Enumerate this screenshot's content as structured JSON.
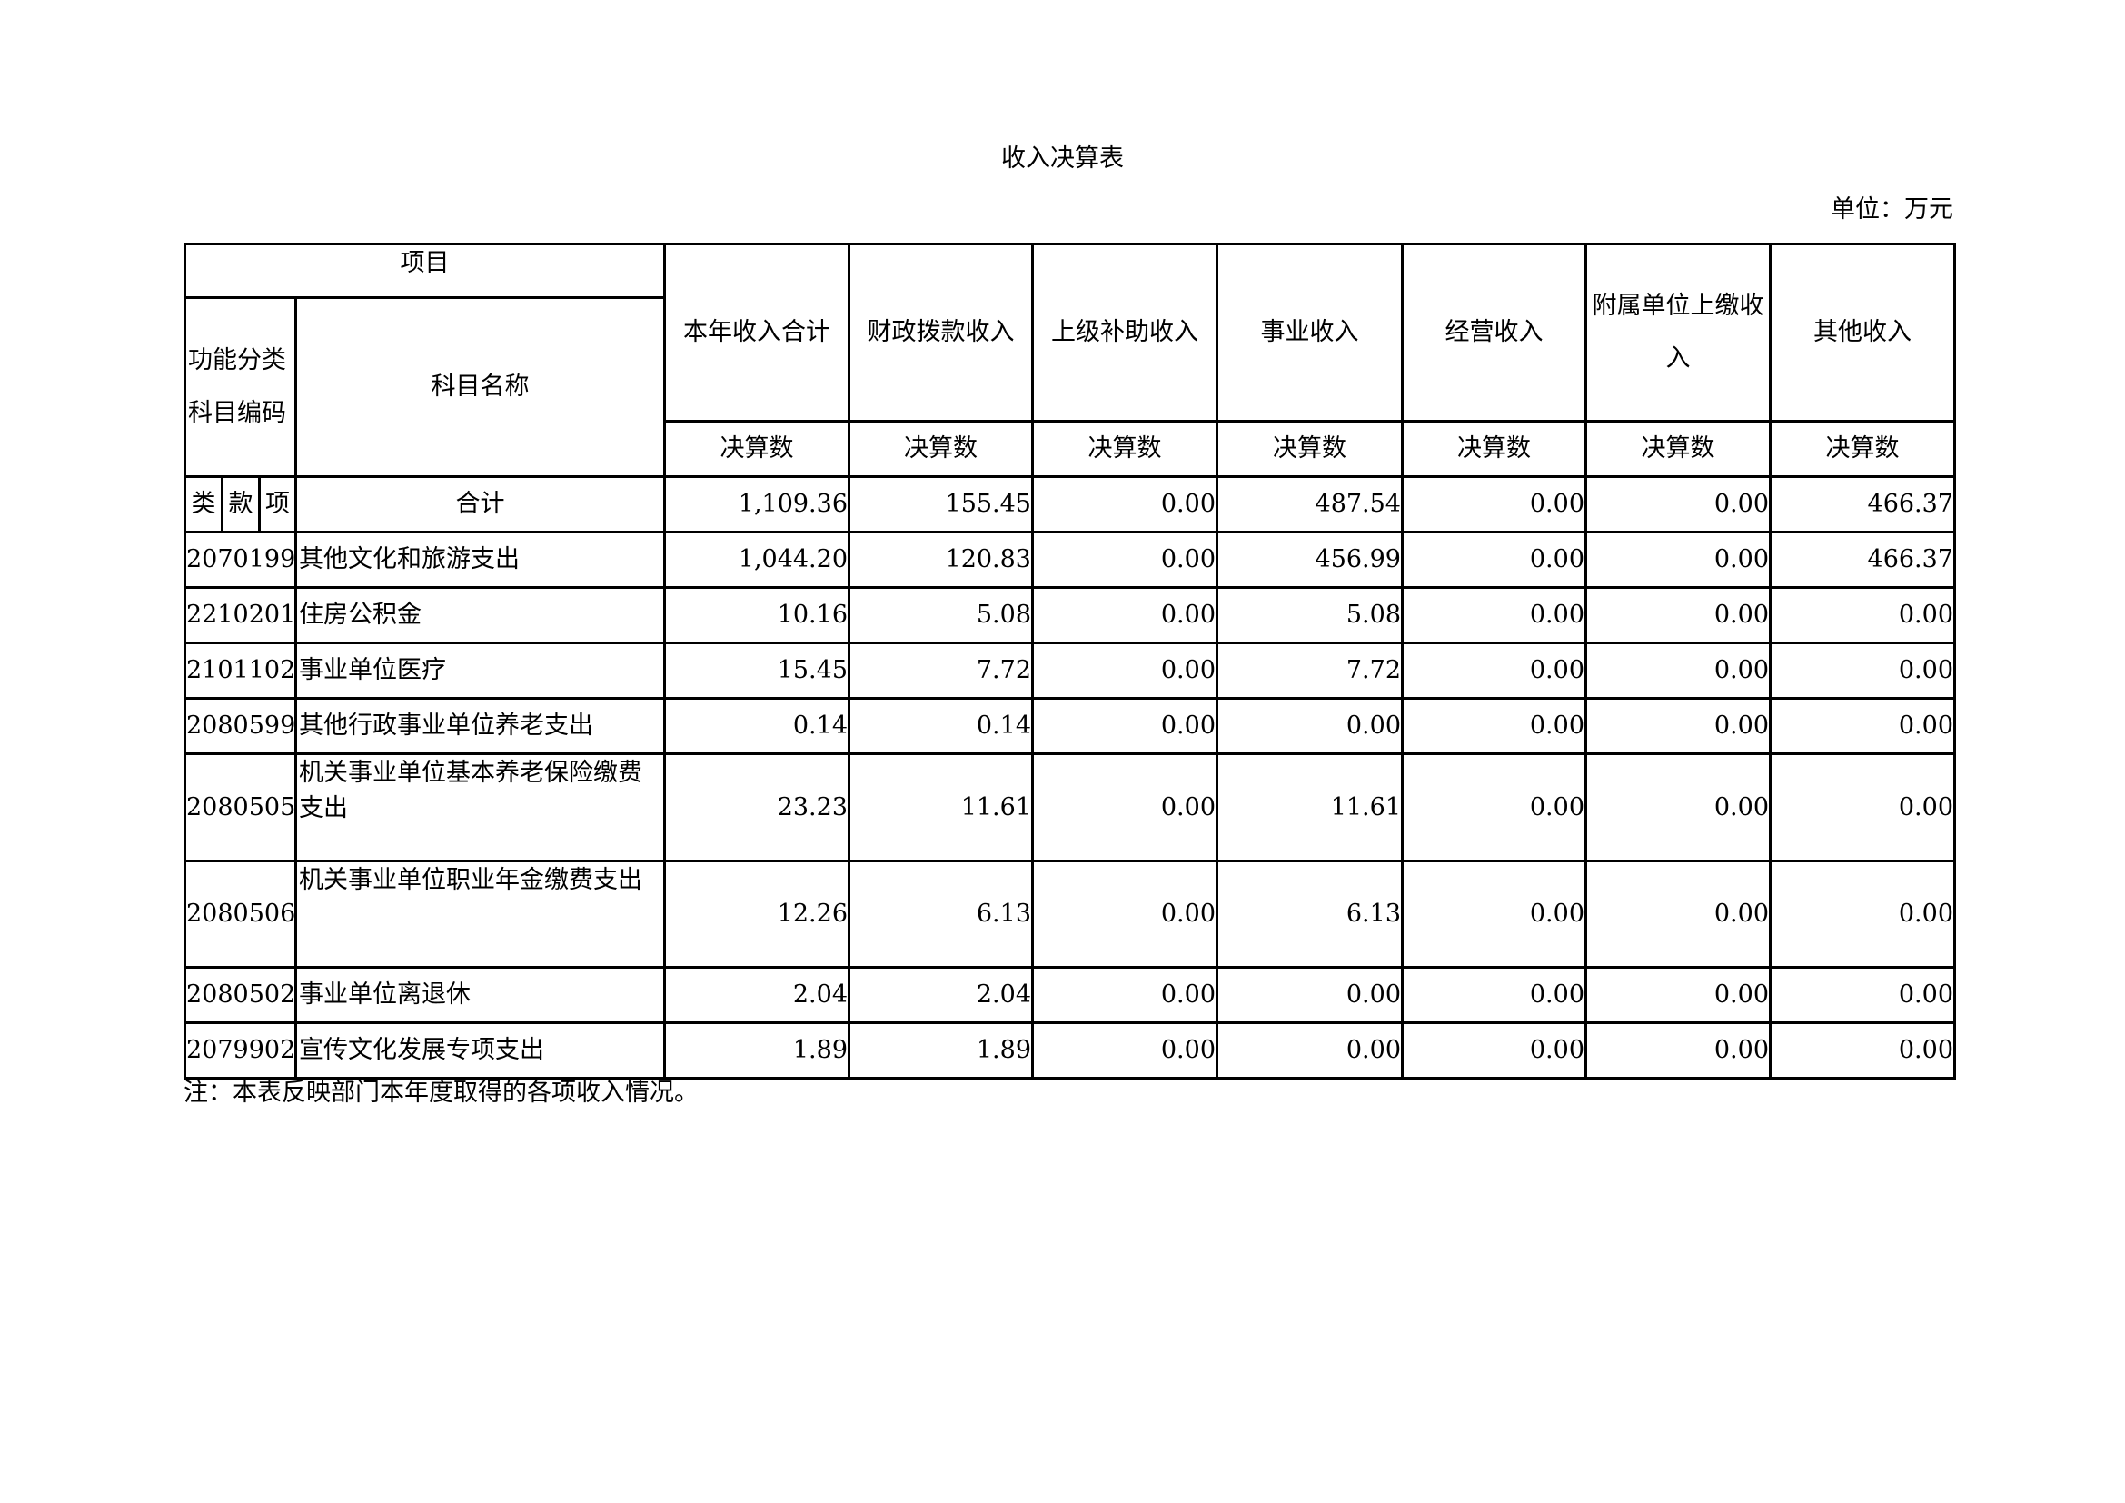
{
  "title": "收入决算表",
  "unit": "单位：万元",
  "header": {
    "item": "项目",
    "code": "功能分类科目编码",
    "name": "科目名称",
    "columns": [
      "本年收入合计",
      "财政拨款收入",
      "上级补助收入",
      "事业收入",
      "经营收入",
      "附属单位上缴收入",
      "其他收入"
    ],
    "sub": "决算数",
    "lei": "类",
    "kuan": "款",
    "xiang": "项",
    "total_label": "合计"
  },
  "total": [
    "1,109.36",
    "155.45",
    "0.00",
    "487.54",
    "0.00",
    "0.00",
    "466.37"
  ],
  "rows": [
    {
      "code": "2070199",
      "name": "其他文化和旅游支出",
      "values": [
        "1,044.20",
        "120.83",
        "0.00",
        "456.99",
        "0.00",
        "0.00",
        "466.37"
      ]
    },
    {
      "code": "2210201",
      "name": "住房公积金",
      "values": [
        "10.16",
        "5.08",
        "0.00",
        "5.08",
        "0.00",
        "0.00",
        "0.00"
      ]
    },
    {
      "code": "2101102",
      "name": "事业单位医疗",
      "values": [
        "15.45",
        "7.72",
        "0.00",
        "7.72",
        "0.00",
        "0.00",
        "0.00"
      ]
    },
    {
      "code": "2080599",
      "name": "其他行政事业单位养老支出",
      "values": [
        "0.14",
        "0.14",
        "0.00",
        "0.00",
        "0.00",
        "0.00",
        "0.00"
      ]
    },
    {
      "code": "2080505",
      "name": "机关事业单位基本养老保险缴费支出",
      "values": [
        "23.23",
        "11.61",
        "0.00",
        "11.61",
        "0.00",
        "0.00",
        "0.00"
      ]
    },
    {
      "code": "2080506",
      "name": "机关事业单位职业年金缴费支出",
      "values": [
        "12.26",
        "6.13",
        "0.00",
        "6.13",
        "0.00",
        "0.00",
        "0.00"
      ]
    },
    {
      "code": "2080502",
      "name": "事业单位离退休",
      "values": [
        "2.04",
        "2.04",
        "0.00",
        "0.00",
        "0.00",
        "0.00",
        "0.00"
      ]
    },
    {
      "code": "2079902",
      "name": "宣传文化发展专项支出",
      "values": [
        "1.89",
        "1.89",
        "0.00",
        "0.00",
        "0.00",
        "0.00",
        "0.00"
      ]
    }
  ],
  "note": "注：本表反映部门本年度取得的各项收入情况。"
}
